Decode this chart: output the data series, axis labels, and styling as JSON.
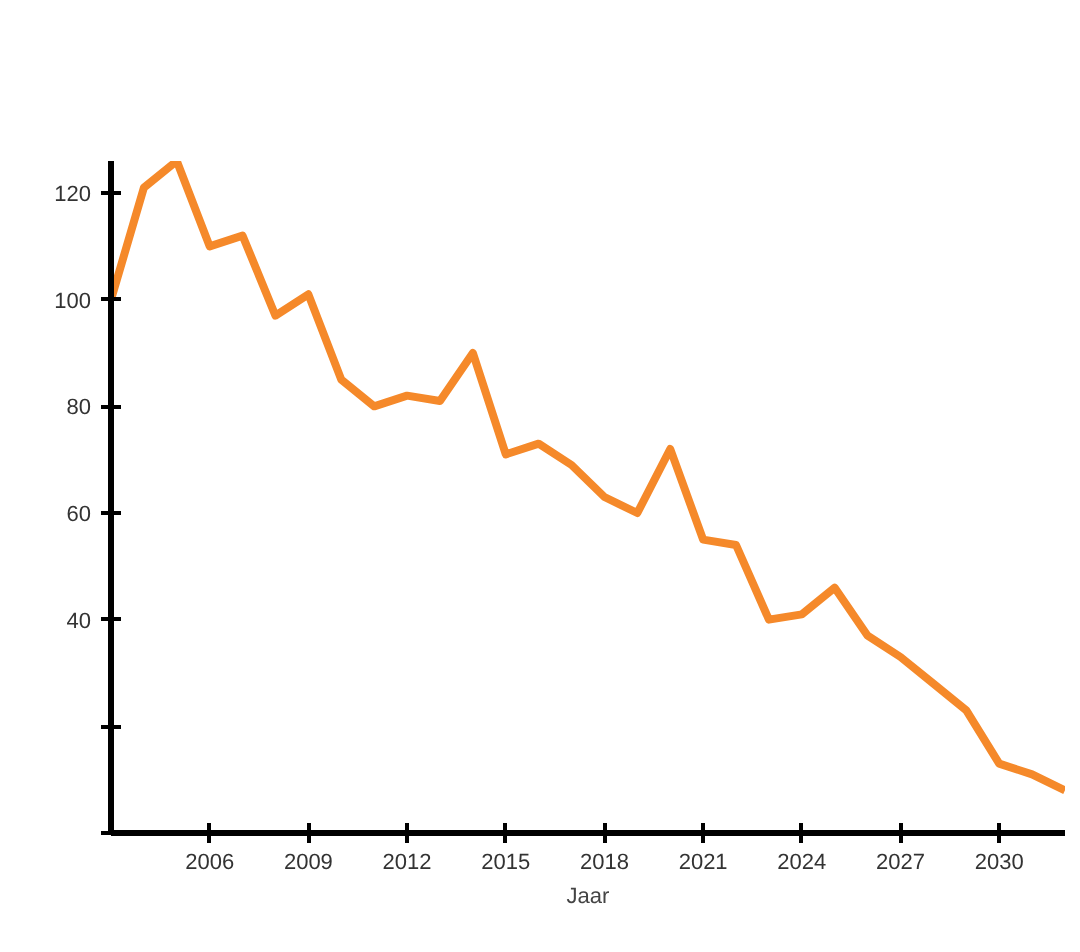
{
  "chart_data": {
    "type": "line",
    "xlabel": "Jaar",
    "x": [
      2003,
      2004,
      2005,
      2006,
      2007,
      2008,
      2009,
      2010,
      2011,
      2012,
      2013,
      2014,
      2015,
      2016,
      2017,
      2018,
      2019,
      2020,
      2021,
      2022,
      2023,
      2024,
      2025,
      2026,
      2027,
      2028,
      2029,
      2030,
      2031,
      2032
    ],
    "series": [
      {
        "color": "#f5892a",
        "values": [
          100,
          121,
          126,
          110,
          112,
          97,
          101,
          85,
          80,
          82,
          81,
          90,
          71,
          73,
          69,
          63,
          60,
          72,
          55,
          54,
          40,
          41,
          46,
          37,
          33,
          28,
          23,
          13,
          11,
          8
        ]
      }
    ],
    "xlim": [
      2003,
      2032
    ],
    "ylim": [
      0,
      126
    ],
    "xticks": [
      2006,
      2009,
      2012,
      2015,
      2018,
      2021,
      2024,
      2027,
      2030
    ],
    "yticks": [
      {
        "value": 0,
        "label": null
      },
      {
        "value": 20,
        "label": null
      },
      40,
      60,
      80,
      100,
      120
    ],
    "grid": false,
    "marker": "none",
    "line_style": "solid"
  }
}
